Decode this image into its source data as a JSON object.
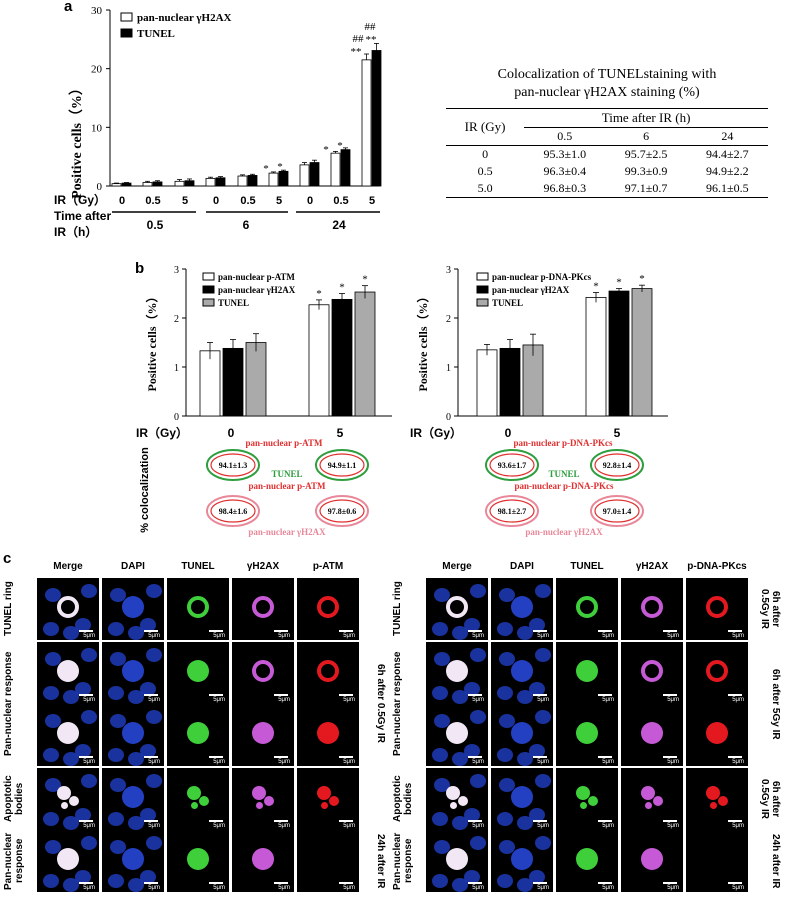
{
  "panel_a": {
    "label": "a",
    "legend": [
      "pan-nuclear γH2AX",
      "TUNEL"
    ],
    "ylabel": "Positive cells（%）",
    "yticks": [
      "0",
      "10",
      "20",
      "30"
    ],
    "ir_label": "IR（Gy）",
    "time_label_line1": "Time after",
    "time_label_line2": "IR（h）",
    "ir_values": [
      "0",
      "0.5",
      "5",
      "0",
      "0.5",
      "5",
      "0",
      "0.5",
      "5"
    ],
    "time_groups": [
      "0.5",
      "6",
      "24"
    ],
    "marks": [
      "*",
      "*",
      "*",
      "*",
      "**",
      "##",
      "**",
      "##"
    ]
  },
  "table": {
    "title_line1": "Colocalization of TUNELstaining with",
    "title_line2": "pan-nuclear γH2AX staining (%)",
    "col_group": "Time after IR (h)",
    "row_header": "IR (Gy)",
    "times": [
      "0.5",
      "6",
      "24"
    ],
    "rows": [
      {
        "ir": "0",
        "vals": [
          "95.3±1.0",
          "95.7±2.5",
          "94.4±2.7"
        ]
      },
      {
        "ir": "0.5",
        "vals": [
          "96.3±0.4",
          "99.3±0.9",
          "94.9±2.2"
        ]
      },
      {
        "ir": "5.0",
        "vals": [
          "96.8±0.3",
          "97.1±0.7",
          "96.1±0.5"
        ]
      }
    ]
  },
  "panel_b": {
    "label": "b",
    "ylabel": "Positive cells（%）",
    "yticks": [
      "0",
      "1",
      "2",
      "3"
    ],
    "ir_label": "IR（Gy）",
    "ir_values": [
      "0",
      "5"
    ],
    "star": "*",
    "coloc_label": "% colocalization",
    "left": {
      "legend": [
        "pan-nuclear p-ATM",
        "pan-nuclear γH2AX",
        "TUNEL"
      ],
      "top_label": "pan-nuclear p-ATM",
      "mid_label": "TUNEL",
      "mid_label2": "pan-nuclear p-ATM",
      "bottom_label": "pan-nuclear γH2AX",
      "ring1": [
        "94.1±1.3",
        "94.9±1.1"
      ],
      "ring2": [
        "98.4±1.6",
        "97.8±0.6"
      ]
    },
    "right": {
      "legend": [
        "pan-nuclear p-DNA-PKcs",
        "pan-nuclear γH2AX",
        "TUNEL"
      ],
      "top_label": "pan-nuclear p-DNA-PKcs",
      "mid_label": "TUNEL",
      "mid_label2": "pan-nuclear p-DNA-PKcs",
      "bottom_label": "pan-nuclear γH2AX",
      "ring1": [
        "93.6±1.7",
        "92.8±1.4"
      ],
      "ring2": [
        "98.1±2.7",
        "97.0±1.4"
      ]
    }
  },
  "panel_c": {
    "label": "c",
    "scale": "5μm",
    "left_headers": [
      "Merge",
      "DAPI",
      "TUNEL",
      "γH2AX",
      "p-ATM"
    ],
    "right_headers": [
      "Merge",
      "DAPI",
      "TUNEL",
      "γH2AX",
      "p-DNA-PKcs"
    ],
    "row_labels": [
      "TUNEL ring",
      "Pan-nuclear response",
      "Apoptotic bodies",
      "Pan-nuclear response"
    ],
    "left_conditions": [
      "6h after 0.5Gy IR",
      "24h after IR"
    ],
    "right_conditions": [
      "6h after 0.5Gy IR",
      "6h after 5Gy IR",
      "6h after 0.5Gy IR",
      "24h after IR"
    ]
  },
  "chart_data": [
    {
      "type": "bar",
      "categories": [
        "0 / 0.5h",
        "0.5 / 0.5h",
        "5 / 0.5h",
        "0 / 6h",
        "0.5 / 6h",
        "5 / 6h",
        "0 / 24h",
        "0.5 / 24h",
        "5 / 24h"
      ],
      "series": [
        {
          "name": "pan-nuclear γH2AX",
          "values": [
            0.4,
            0.6,
            0.8,
            1.3,
            1.7,
            2.2,
            3.6,
            5.6,
            21.5
          ],
          "errors": [
            0.1,
            0.2,
            0.3,
            0.2,
            0.2,
            0.2,
            0.4,
            0.3,
            1.0
          ]
        },
        {
          "name": "TUNEL",
          "values": [
            0.5,
            0.7,
            0.9,
            1.4,
            1.8,
            2.5,
            4.0,
            6.2,
            23.1
          ],
          "errors": [
            0.1,
            0.2,
            0.3,
            0.2,
            0.2,
            0.2,
            0.4,
            0.3,
            1.2
          ]
        }
      ],
      "ylabel": "Positive cells（%）",
      "ylim": [
        0,
        30
      ]
    },
    {
      "type": "bar",
      "categories": [
        "0",
        "5"
      ],
      "series": [
        {
          "name": "pan-nuclear p-ATM",
          "values": [
            1.33,
            2.27
          ],
          "errors": [
            0.17,
            0.1
          ]
        },
        {
          "name": "pan-nuclear γH2AX",
          "values": [
            1.38,
            2.38
          ],
          "errors": [
            0.18,
            0.12
          ]
        },
        {
          "name": "TUNEL",
          "values": [
            1.5,
            2.53
          ],
          "errors": [
            0.18,
            0.13
          ]
        }
      ],
      "ylabel": "Positive cells（%）",
      "ylim": [
        0,
        3
      ]
    },
    {
      "type": "bar",
      "categories": [
        "0",
        "5"
      ],
      "series": [
        {
          "name": "pan-nuclear p-DNA-PKcs",
          "values": [
            1.35,
            2.42
          ],
          "errors": [
            0.11,
            0.1
          ]
        },
        {
          "name": "pan-nuclear γH2AX",
          "values": [
            1.38,
            2.55
          ],
          "errors": [
            0.18,
            0.05
          ]
        },
        {
          "name": "TUNEL",
          "values": [
            1.45,
            2.6
          ],
          "errors": [
            0.22,
            0.07
          ]
        }
      ],
      "ylabel": "Positive cells（%）",
      "ylim": [
        0,
        3
      ]
    }
  ]
}
